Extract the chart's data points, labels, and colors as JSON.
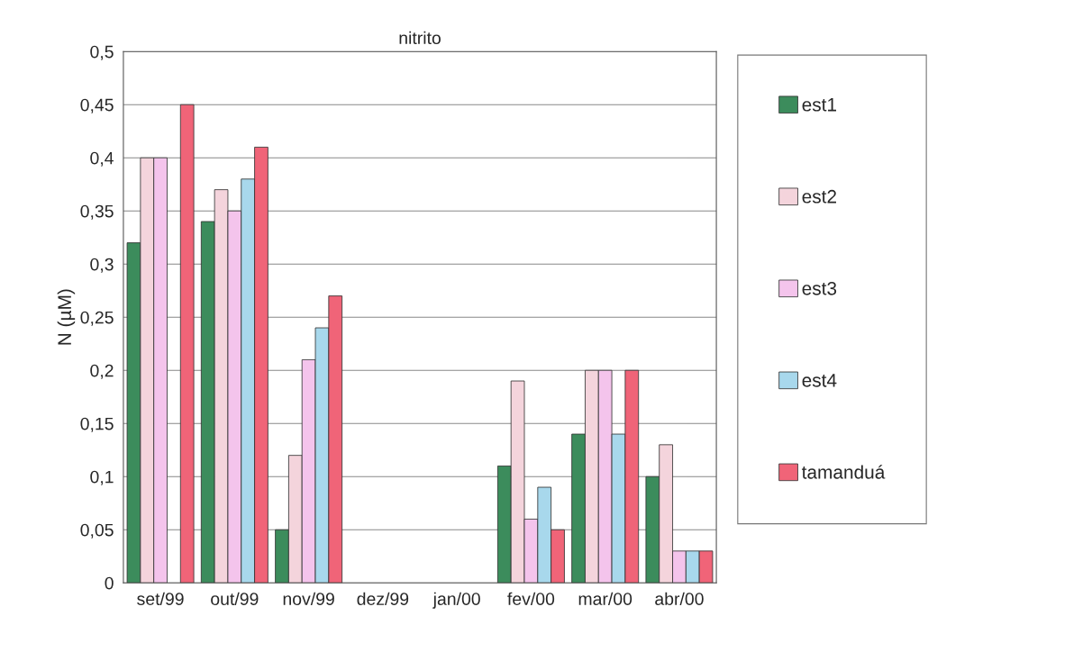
{
  "chart_data": {
    "type": "bar",
    "title": "nitrito",
    "ylabel": "N (µM)",
    "categories": [
      "set/99",
      "out/99",
      "nov/99",
      "dez/99",
      "jan/00",
      "fev/00",
      "mar/00",
      "abr/00"
    ],
    "series": [
      {
        "name": "est1",
        "color": "#3c8c5c",
        "values": [
          0.32,
          0.34,
          0.05,
          null,
          null,
          0.11,
          0.14,
          0.1
        ]
      },
      {
        "name": "est2",
        "color": "#f4d4dc",
        "values": [
          0.4,
          0.37,
          0.12,
          null,
          null,
          0.19,
          0.2,
          0.13
        ]
      },
      {
        "name": "est3",
        "color": "#f4c4ec",
        "values": [
          0.4,
          0.35,
          0.21,
          null,
          null,
          0.06,
          0.2,
          0.03
        ]
      },
      {
        "name": "est4",
        "color": "#a8d8ec",
        "values": [
          null,
          0.38,
          0.24,
          null,
          null,
          0.09,
          0.14,
          0.03
        ]
      },
      {
        "name": "tamanduá",
        "color": "#f06478",
        "values": [
          0.45,
          0.41,
          0.27,
          null,
          null,
          0.05,
          0.2,
          0.03
        ]
      }
    ],
    "ylim": [
      0,
      0.5
    ],
    "yticks": [
      0,
      {
        "value": 0.05,
        "label": "0,05"
      },
      {
        "value": 0.1,
        "label": "0,1"
      },
      {
        "value": 0.15,
        "label": "0,15"
      },
      {
        "value": 0.2,
        "label": "0,2"
      },
      {
        "value": 0.25,
        "label": "0,25"
      },
      {
        "value": 0.3,
        "label": "0,3"
      },
      {
        "value": 0.35,
        "label": "0,35"
      },
      {
        "value": 0.4,
        "label": "0,4"
      },
      {
        "value": 0.45,
        "label": "0,45"
      },
      {
        "value": 0.5,
        "label": "0,5"
      }
    ],
    "grid": "y",
    "legend": "right"
  }
}
